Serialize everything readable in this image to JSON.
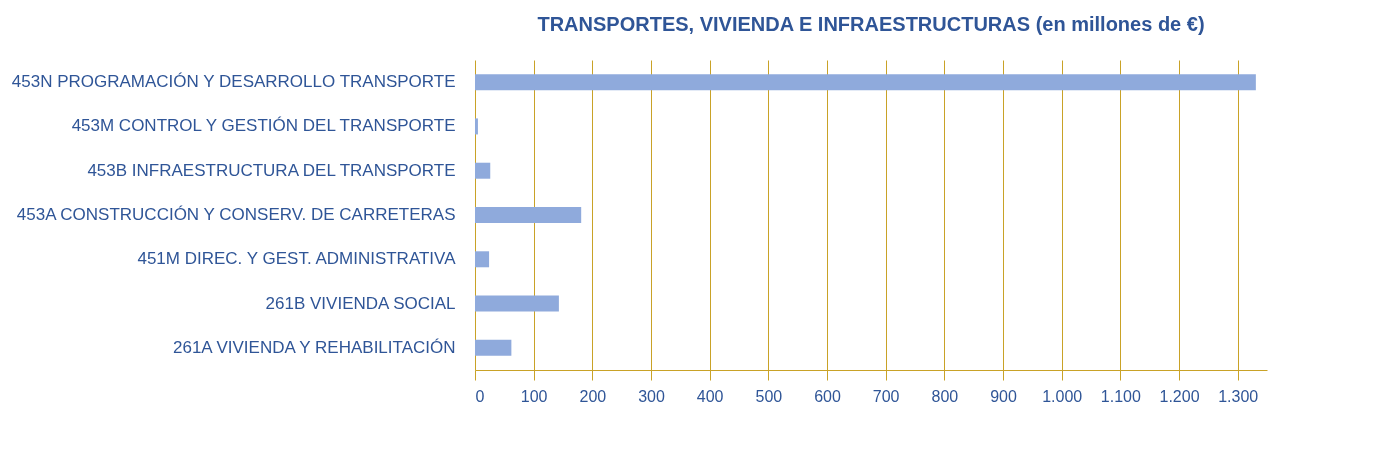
{
  "chart_data": {
    "type": "bar",
    "orientation": "horizontal",
    "title": "TRANSPORTES, VIVIENDA E INFRAESTRUCTURAS (en millones de €)",
    "categories": [
      "453N PROGRAMACIÓN Y DESARROLLO TRANSPORTE",
      "453M CONTROL Y GESTIÓN DEL TRANSPORTE",
      "453B INFRAESTRUCTURA DEL TRANSPORTE",
      "453A CONSTRUCCIÓN Y CONSERV. DE CARRETERAS",
      "451M DIREC. Y GEST. ADMINISTRATIVA",
      "261B VIVIENDA SOCIAL",
      "261A VIVIENDA Y REHABILITACIÓN"
    ],
    "values": [
      1331,
      5,
      26,
      181,
      24,
      143,
      62
    ],
    "color": "#8faadc",
    "xlim": [
      0,
      1350
    ],
    "xticks": [
      0,
      100,
      200,
      300,
      400,
      500,
      600,
      700,
      800,
      900,
      {
        "value": 1000,
        "label": "1.000"
      },
      {
        "value": 1100,
        "label": "1.100"
      },
      {
        "value": 1200,
        "label": "1.200"
      },
      {
        "value": 1300,
        "label": "1.300"
      }
    ],
    "grid": "x"
  }
}
